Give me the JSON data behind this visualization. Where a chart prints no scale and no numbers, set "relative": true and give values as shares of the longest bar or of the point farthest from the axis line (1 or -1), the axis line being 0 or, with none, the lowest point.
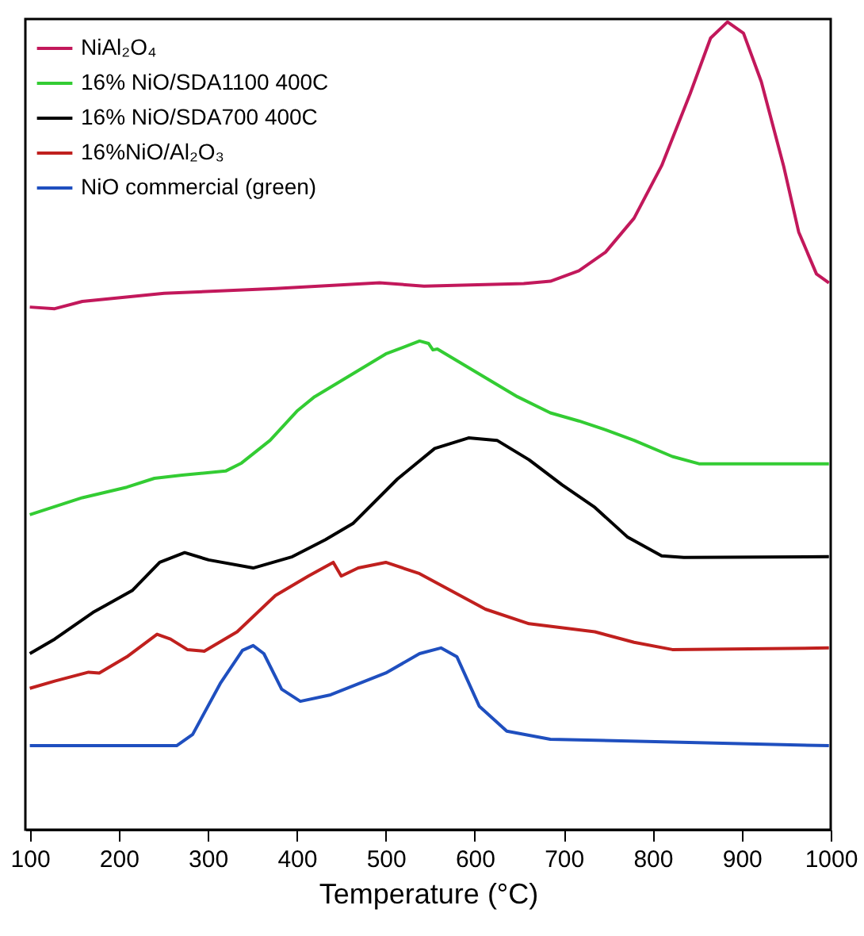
{
  "chart_data": {
    "type": "line",
    "xlabel": "Temperature (°C)",
    "xlim": [
      95,
      1000
    ],
    "xticks": [
      100,
      200,
      300,
      400,
      500,
      600,
      700,
      800,
      900,
      1000
    ],
    "relative": true,
    "legend": "top left",
    "series": [
      {
        "name": "NiAl₂O₄",
        "color": "#c2185b",
        "x": [
          100,
          128,
          159,
          251,
          376,
          493,
          543,
          655,
          685,
          717,
          747,
          779,
          810,
          842,
          865,
          884,
          902,
          922,
          947,
          964,
          984,
          998
        ],
        "values": [
          0.647,
          0.645,
          0.654,
          0.664,
          0.67,
          0.677,
          0.673,
          0.676,
          0.679,
          0.692,
          0.715,
          0.757,
          0.822,
          0.911,
          0.98,
          1.0,
          0.986,
          0.926,
          0.822,
          0.74,
          0.688,
          0.677
        ]
      },
      {
        "name": "16% NiO/SDA1100 400C",
        "color": "#33cc33",
        "x": [
          100,
          159,
          209,
          240,
          271,
          320,
          338,
          370,
          401,
          420,
          500,
          538,
          548,
          553,
          558,
          648,
          685,
          717,
          747,
          779,
          822,
          852,
          998
        ],
        "values": [
          0.39,
          0.411,
          0.424,
          0.435,
          0.439,
          0.444,
          0.454,
          0.482,
          0.519,
          0.536,
          0.589,
          0.605,
          0.602,
          0.594,
          0.595,
          0.536,
          0.516,
          0.506,
          0.495,
          0.482,
          0.462,
          0.453,
          0.453
        ]
      },
      {
        "name": "16% NiO/SDA700 400C",
        "color": "#000000",
        "x": [
          100,
          128,
          171,
          215,
          246,
          274,
          301,
          351,
          395,
          432,
          463,
          513,
          555,
          593,
          625,
          661,
          698,
          735,
          772,
          810,
          835,
          998
        ],
        "values": [
          0.218,
          0.236,
          0.269,
          0.296,
          0.331,
          0.343,
          0.334,
          0.324,
          0.338,
          0.359,
          0.379,
          0.434,
          0.472,
          0.485,
          0.482,
          0.458,
          0.427,
          0.399,
          0.362,
          0.339,
          0.337,
          0.338
        ]
      },
      {
        "name": "16%NiO/Al₂O₃",
        "color": "#c0201e",
        "x": [
          100,
          128,
          166,
          178,
          209,
          243,
          258,
          277,
          296,
          333,
          376,
          413,
          441,
          450,
          469,
          500,
          538,
          612,
          661,
          735,
          779,
          822,
          998
        ],
        "values": [
          0.175,
          0.184,
          0.195,
          0.194,
          0.214,
          0.242,
          0.236,
          0.223,
          0.221,
          0.245,
          0.29,
          0.314,
          0.331,
          0.314,
          0.324,
          0.331,
          0.317,
          0.273,
          0.255,
          0.245,
          0.232,
          0.223,
          0.225
        ]
      },
      {
        "name": "NiO commercial (green)",
        "color": "#1f4fbf",
        "x": [
          100,
          265,
          283,
          314,
          339,
          351,
          363,
          383,
          404,
          438,
          500,
          538,
          562,
          580,
          605,
          636,
          685,
          841,
          998
        ],
        "values": [
          0.104,
          0.104,
          0.118,
          0.181,
          0.222,
          0.228,
          0.218,
          0.174,
          0.159,
          0.167,
          0.194,
          0.218,
          0.225,
          0.214,
          0.153,
          0.122,
          0.112,
          0.108,
          0.104
        ]
      }
    ]
  }
}
